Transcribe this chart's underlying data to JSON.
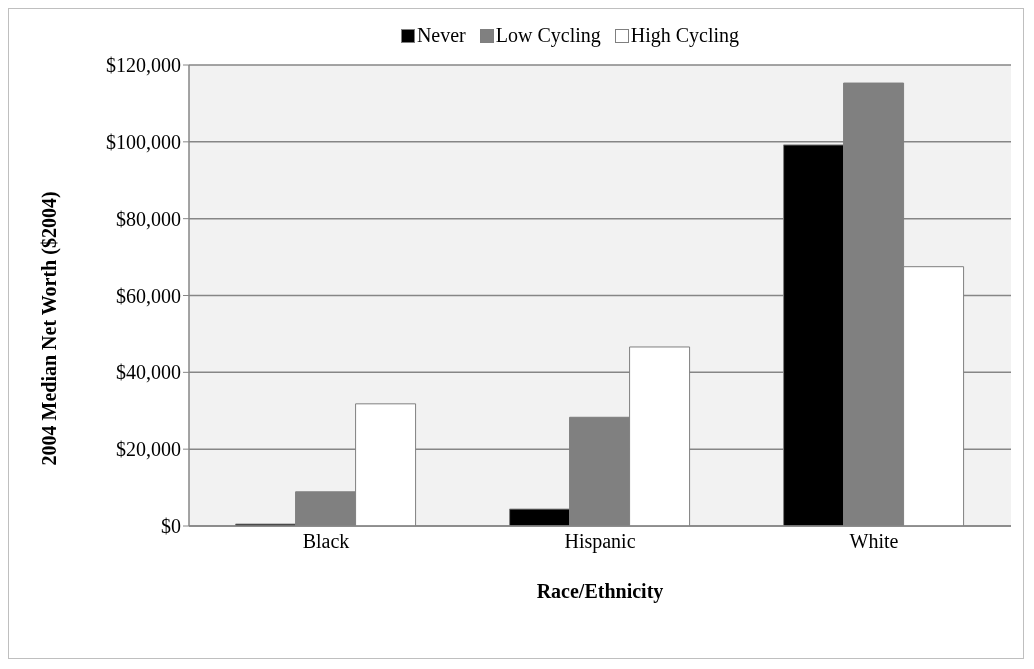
{
  "chart_data": {
    "type": "bar",
    "xlabel": "Race/Ethnicity",
    "ylabel": "2004 Median Net Worth ($2004)",
    "categories": [
      "Black",
      "Hispanic",
      "White"
    ],
    "series": [
      {
        "name": "Never",
        "color": "#000000",
        "values": [
          500,
          4400,
          99200
        ]
      },
      {
        "name": "Low Cycling",
        "color": "#808080",
        "values": [
          8900,
          28300,
          115300
        ]
      },
      {
        "name": "High Cycling",
        "color": "#ffffff",
        "values": [
          31800,
          46600,
          67500
        ]
      }
    ],
    "ylim": [
      0,
      120000
    ],
    "yticks": [
      {
        "value": 0,
        "label": "$0"
      },
      {
        "value": 20000,
        "label": "$20,000"
      },
      {
        "value": 40000,
        "label": "$40,000"
      },
      {
        "value": 60000,
        "label": "$60,000"
      },
      {
        "value": 80000,
        "label": "$80,000"
      },
      {
        "value": 100000,
        "label": "$100,000"
      },
      {
        "value": 120000,
        "label": "$120,000"
      }
    ],
    "grid": "y",
    "legend": "top"
  }
}
